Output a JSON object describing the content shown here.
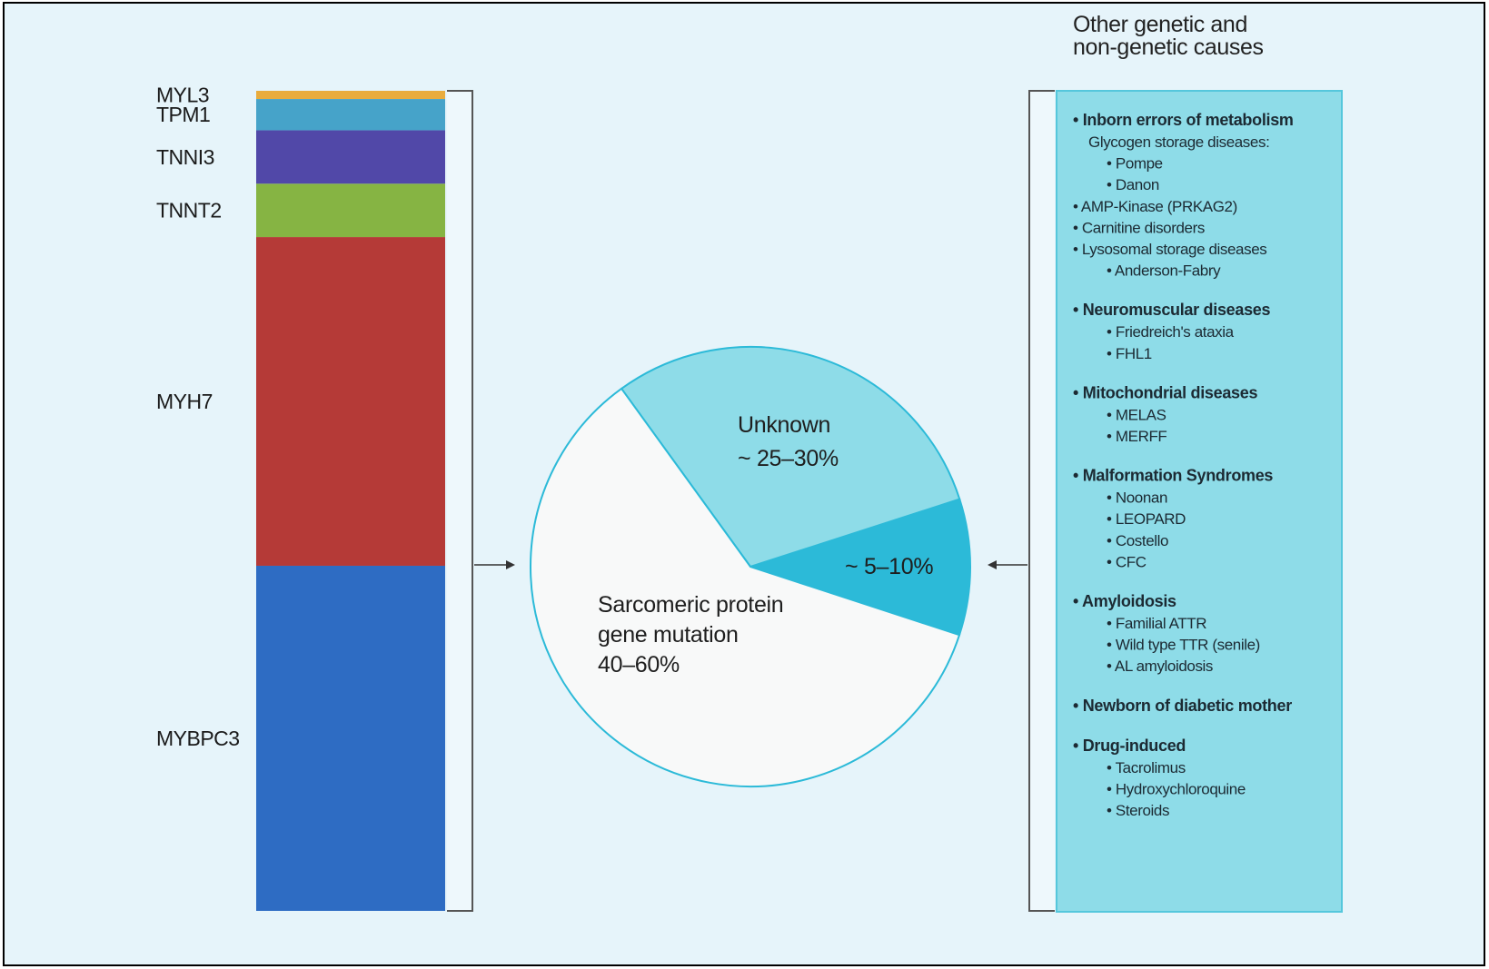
{
  "colors": {
    "background": "#e6f4fa",
    "frame": "#000000",
    "bracket": "#555555",
    "list_box": "#8edce8",
    "list_box_border": "#55c7dc"
  },
  "chart_data": [
    {
      "type": "bar",
      "stacked": true,
      "orientation": "vertical",
      "categories": [
        "MYBPC3",
        "MYH7",
        "TNNT2",
        "TNNI3",
        "TPM1",
        "MYL3"
      ],
      "values": [
        42,
        40,
        6.5,
        6.5,
        3.8,
        1
      ],
      "colors": [
        "#2e6cc3",
        "#b53a37",
        "#86b443",
        "#5148a8",
        "#46a3c9",
        "#e9ac3d"
      ],
      "legend": "labels-left",
      "grid": false
    },
    {
      "type": "pie",
      "slices": [
        {
          "label_lines": [
            "Sarcomeric protein",
            "gene mutation",
            "40–60%"
          ],
          "value": 60,
          "color": "#f8f9f9"
        },
        {
          "label_lines": [
            "Unknown",
            "~ 25–30%"
          ],
          "value": 30,
          "color": "#8edce8"
        },
        {
          "label_lines": [
            "~ 5–10%"
          ],
          "value": 10,
          "color": "#2cbad8"
        }
      ],
      "legend": "none"
    }
  ],
  "list": {
    "title_lines": [
      "Other genetic and",
      "non-genetic causes"
    ],
    "groups": [
      {
        "heading": "• Inborn errors of metabolism",
        "items": [
          {
            "text": "Glycogen storage diseases:",
            "level": 1
          },
          {
            "text": "• Pompe",
            "level": 2
          },
          {
            "text": "• Danon",
            "level": 2
          },
          {
            "text": "•  AMP-Kinase (PRKAG2)",
            "level": 0
          },
          {
            "text": "•  Carnitine disorders",
            "level": 0
          },
          {
            "text": "•  Lysosomal storage diseases",
            "level": 0
          },
          {
            "text": "• Anderson-Fabry",
            "level": 2
          }
        ]
      },
      {
        "heading": "• Neuromuscular diseases",
        "items": [
          {
            "text": "• Friedreich's ataxia",
            "level": 2
          },
          {
            "text": "• FHL1",
            "level": 2
          }
        ]
      },
      {
        "heading": "•  Mitochondrial diseases",
        "items": [
          {
            "text": "• MELAS",
            "level": 2
          },
          {
            "text": "• MERFF",
            "level": 2
          }
        ]
      },
      {
        "heading": "•  Malformation Syndromes",
        "items": [
          {
            "text": "• Noonan",
            "level": 2
          },
          {
            "text": "• LEOPARD",
            "level": 2
          },
          {
            "text": "• Costello",
            "level": 2
          },
          {
            "text": "• CFC",
            "level": 2
          }
        ]
      },
      {
        "heading": "• Amyloidosis",
        "items": [
          {
            "text": "• Familial ATTR",
            "level": 2
          },
          {
            "text": "• Wild type TTR (senile)",
            "level": 2
          },
          {
            "text": "• AL amyloidosis",
            "level": 2
          }
        ]
      },
      {
        "heading": "•  Newborn of diabetic mother",
        "items": []
      },
      {
        "heading": "• Drug-induced",
        "items": [
          {
            "text": "• Tacrolimus",
            "level": 2
          },
          {
            "text": "• Hydroxychloroquine",
            "level": 2
          },
          {
            "text": "• Steroids",
            "level": 2
          }
        ]
      }
    ]
  }
}
